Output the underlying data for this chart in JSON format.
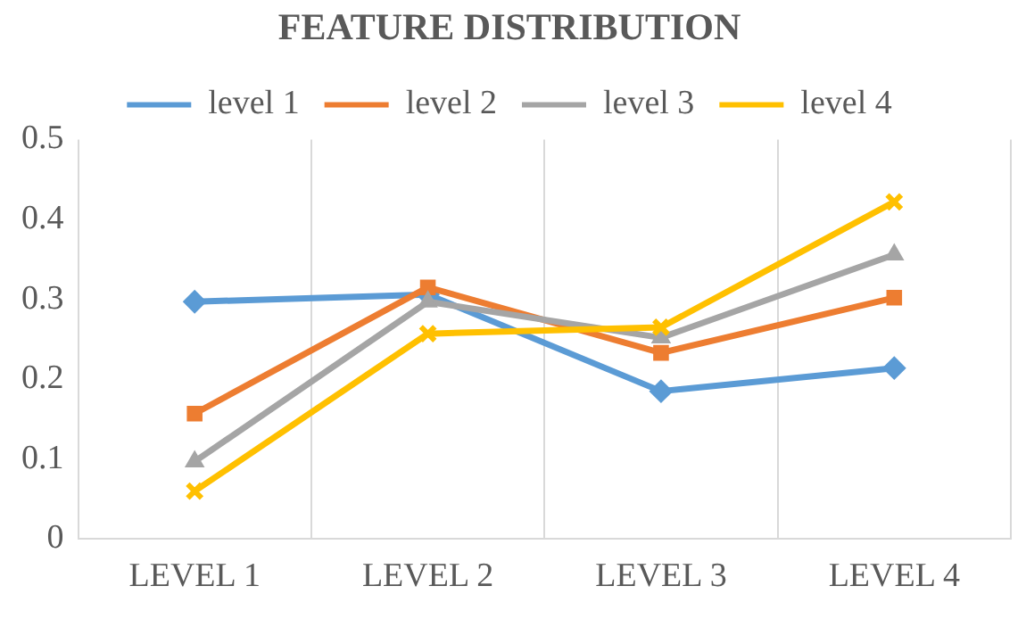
{
  "chart_data": {
    "type": "line",
    "title": "FEATURE DISTRIBUTION",
    "categories": [
      "LEVEL 1",
      "LEVEL 2",
      "LEVEL 3",
      "LEVEL 4"
    ],
    "series": [
      {
        "name": "level 1",
        "color": "#5b9bd5",
        "marker": "diamond",
        "values": [
          0.297,
          0.306,
          0.185,
          0.214
        ]
      },
      {
        "name": "level 2",
        "color": "#ed7d31",
        "marker": "square",
        "values": [
          0.157,
          0.315,
          0.233,
          0.302
        ]
      },
      {
        "name": "level 3",
        "color": "#a5a5a5",
        "marker": "triangle",
        "values": [
          0.097,
          0.297,
          0.252,
          0.356
        ]
      },
      {
        "name": "level 4",
        "color": "#ffc000",
        "marker": "cross",
        "values": [
          0.06,
          0.257,
          0.265,
          0.422
        ]
      }
    ],
    "ylim": [
      0,
      0.5
    ],
    "yticks": [
      0,
      0.1,
      0.2,
      0.3,
      0.4,
      0.5
    ],
    "grid": "x",
    "legend": "top",
    "line_style": "solid"
  }
}
